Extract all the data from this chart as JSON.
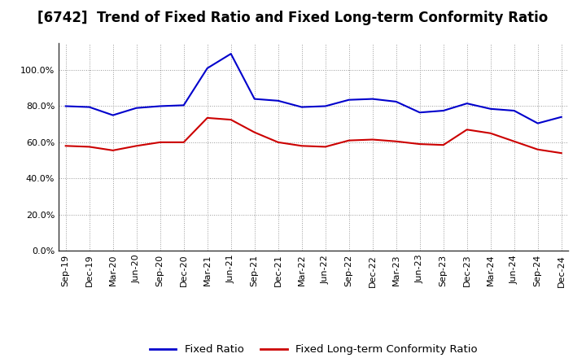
{
  "title": "[6742]  Trend of Fixed Ratio and Fixed Long-term Conformity Ratio",
  "x_labels": [
    "Sep-19",
    "Dec-19",
    "Mar-20",
    "Jun-20",
    "Sep-20",
    "Dec-20",
    "Mar-21",
    "Jun-21",
    "Sep-21",
    "Dec-21",
    "Mar-22",
    "Jun-22",
    "Sep-22",
    "Dec-22",
    "Mar-23",
    "Jun-23",
    "Sep-23",
    "Dec-23",
    "Mar-24",
    "Jun-24",
    "Sep-24",
    "Dec-24"
  ],
  "fixed_ratio": [
    80.0,
    79.5,
    75.0,
    79.0,
    80.0,
    80.5,
    101.0,
    109.0,
    84.0,
    83.0,
    79.5,
    80.0,
    83.5,
    84.0,
    82.5,
    76.5,
    77.5,
    81.5,
    78.5,
    77.5,
    70.5,
    74.0
  ],
  "fixed_lt_ratio": [
    58.0,
    57.5,
    55.5,
    58.0,
    60.0,
    60.0,
    73.5,
    72.5,
    65.5,
    60.0,
    58.0,
    57.5,
    61.0,
    61.5,
    60.5,
    59.0,
    58.5,
    67.0,
    65.0,
    60.5,
    56.0,
    54.0
  ],
  "fixed_ratio_color": "#0000CC",
  "fixed_lt_ratio_color": "#CC0000",
  "bg_color": "#ffffff",
  "plot_bg_color": "#ffffff",
  "grid_color": "#999999",
  "ylim": [
    0,
    115
  ],
  "yticks": [
    0,
    20,
    40,
    60,
    80,
    100
  ],
  "legend_fixed": "Fixed Ratio",
  "legend_lt": "Fixed Long-term Conformity Ratio",
  "title_fontsize": 12,
  "tick_fontsize": 8,
  "legend_fontsize": 9.5
}
